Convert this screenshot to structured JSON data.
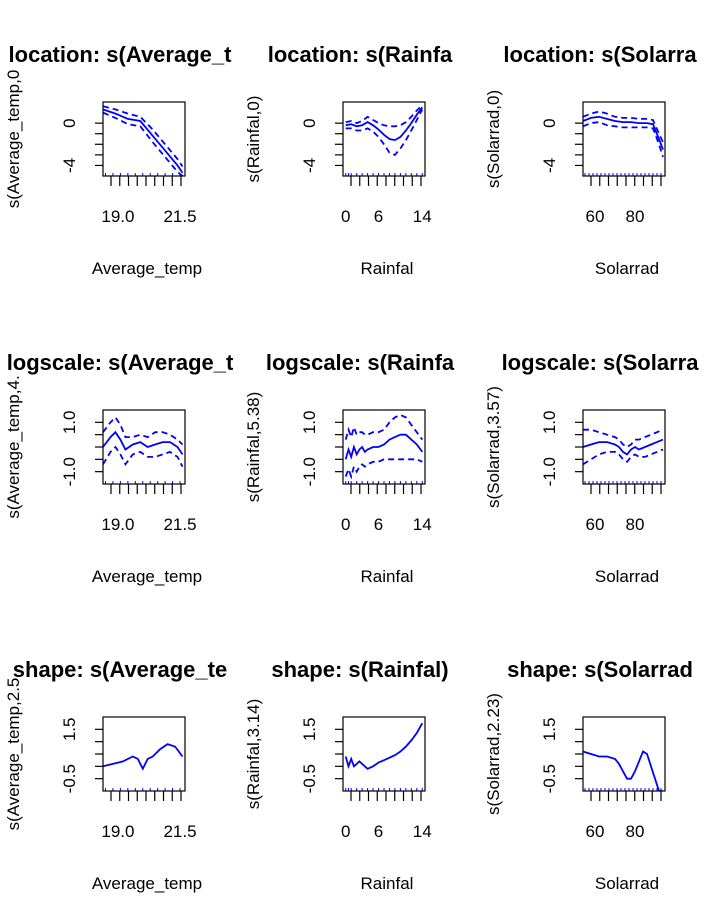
{
  "chart_data": [
    {
      "type": "line",
      "title": "location: s(Average_t",
      "xlabel": "Average_temp",
      "ylabel": "s(Average_temp,0",
      "xlim": [
        18.4,
        21.7
      ],
      "ylim": [
        -5.0,
        2.0
      ],
      "xticks": [
        19.0,
        21.5
      ],
      "xtick_labels": [
        "19.0",
        "21.5"
      ],
      "yticks": [
        -4,
        0
      ],
      "ytick_labels": [
        "-4",
        "0"
      ],
      "rug": [
        18.5,
        18.8,
        19.1,
        19.4,
        19.7,
        20.0,
        20.3,
        20.6,
        20.9,
        21.2,
        21.5
      ],
      "series": [
        {
          "x": [
            18.4,
            18.9,
            19.4,
            19.9,
            20.4,
            20.9,
            21.4,
            21.6
          ],
          "values": [
            1.3,
            0.9,
            0.4,
            0.2,
            -1.2,
            -2.6,
            -4.0,
            -4.7
          ]
        },
        {
          "style": "dashed",
          "x": [
            18.4,
            18.9,
            19.4,
            19.9,
            20.4,
            20.9,
            21.4,
            21.6
          ],
          "values": [
            1.6,
            1.3,
            0.9,
            0.6,
            -0.6,
            -2.0,
            -3.4,
            -4.1
          ]
        },
        {
          "style": "dashed",
          "x": [
            18.4,
            18.9,
            19.4,
            19.9,
            20.4,
            20.9,
            21.4,
            21.6
          ],
          "values": [
            1.0,
            0.5,
            -0.1,
            -0.3,
            -1.8,
            -3.2,
            -4.6,
            -5.0
          ]
        }
      ]
    },
    {
      "type": "line",
      "title": "location: s(Rainfa",
      "xlabel": "Rainfal",
      "ylabel": "s(Rainfal,0)",
      "xlim": [
        -0.5,
        14.5
      ],
      "ylim": [
        -5.0,
        2.0
      ],
      "xticks": [
        0,
        6,
        14
      ],
      "xtick_labels": [
        "0",
        "6",
        "14"
      ],
      "yticks": [
        -4,
        0
      ],
      "ytick_labels": [
        "-4",
        "0"
      ],
      "rug": [
        0,
        0.5,
        1,
        2,
        3,
        4,
        5,
        6,
        7,
        8,
        9,
        10,
        11,
        12,
        13,
        14
      ],
      "series": [
        {
          "x": [
            0,
            1,
            2,
            3,
            4,
            5,
            6,
            7,
            8,
            9,
            10,
            11,
            12,
            13,
            14
          ],
          "values": [
            -0.2,
            -0.1,
            -0.3,
            -0.2,
            0.1,
            -0.2,
            -0.6,
            -1.1,
            -1.5,
            -1.6,
            -1.3,
            -0.7,
            0.0,
            0.8,
            1.5
          ]
        },
        {
          "style": "dashed",
          "x": [
            0,
            1,
            2,
            3,
            4,
            5,
            6,
            7,
            8,
            9,
            10,
            11,
            12,
            13,
            14
          ],
          "values": [
            0.1,
            0.2,
            0.0,
            0.2,
            0.6,
            0.3,
            0.0,
            -0.2,
            -0.3,
            -0.3,
            -0.2,
            0.1,
            0.6,
            1.2,
            1.7
          ]
        },
        {
          "style": "dashed",
          "x": [
            0,
            1,
            2,
            3,
            4,
            5,
            6,
            7,
            8,
            9,
            10,
            11,
            12,
            13,
            14
          ],
          "values": [
            -0.5,
            -0.5,
            -0.7,
            -0.7,
            -0.5,
            -0.8,
            -1.3,
            -2.0,
            -2.8,
            -3.0,
            -2.4,
            -1.6,
            -0.7,
            0.3,
            1.3
          ]
        }
      ]
    },
    {
      "type": "line",
      "title": "location: s(Solarra",
      "xlabel": "Solarrad",
      "ylabel": "s(Solarrad,0)",
      "xlim": [
        54,
        95
      ],
      "ylim": [
        -5.0,
        2.0
      ],
      "xticks": [
        60,
        80
      ],
      "xtick_labels": [
        "60",
        "80"
      ],
      "rug": [
        55,
        57,
        59,
        61,
        63,
        65,
        67,
        69,
        71,
        73,
        75,
        77,
        79,
        81,
        83,
        85,
        87,
        89,
        91,
        93
      ],
      "yticks": [
        -4,
        0
      ],
      "ytick_labels": [
        "-4",
        "0"
      ],
      "series": [
        {
          "x": [
            54,
            58,
            62,
            66,
            70,
            74,
            78,
            82,
            86,
            89,
            92,
            94
          ],
          "values": [
            0.2,
            0.5,
            0.6,
            0.4,
            0.2,
            0.1,
            0.1,
            0.0,
            0.0,
            -0.1,
            -1.5,
            -2.5
          ]
        },
        {
          "style": "dashed",
          "x": [
            54,
            58,
            62,
            66,
            70,
            74,
            78,
            82,
            86,
            89,
            92,
            94
          ],
          "values": [
            0.6,
            0.9,
            1.1,
            0.9,
            0.6,
            0.5,
            0.5,
            0.4,
            0.4,
            0.3,
            -1.0,
            -1.8
          ]
        },
        {
          "style": "dashed",
          "x": [
            54,
            58,
            62,
            66,
            70,
            74,
            78,
            82,
            86,
            89,
            92,
            94
          ],
          "values": [
            -0.3,
            0.0,
            0.1,
            -0.2,
            -0.3,
            -0.4,
            -0.4,
            -0.4,
            -0.4,
            -0.5,
            -2.0,
            -3.2
          ]
        }
      ]
    },
    {
      "type": "line",
      "title": "logscale: s(Average_t",
      "xlabel": "Average_temp",
      "ylabel": "s(Average_temp,4.",
      "xlim": [
        18.4,
        21.7
      ],
      "ylim": [
        -1.5,
        1.5
      ],
      "xticks": [
        19.0,
        21.5
      ],
      "xtick_labels": [
        "19.0",
        "21.5"
      ],
      "yticks": [
        -1.0,
        1.0
      ],
      "ytick_labels": [
        "-1.0",
        "1.0"
      ],
      "rug": [
        18.5,
        18.8,
        19.1,
        19.4,
        19.7,
        20.0,
        20.3,
        20.6,
        20.9,
        21.2,
        21.5
      ],
      "series": [
        {
          "x": [
            18.4,
            18.7,
            18.9,
            19.1,
            19.3,
            19.6,
            19.9,
            20.2,
            20.5,
            20.8,
            21.1,
            21.4,
            21.6
          ],
          "values": [
            0.0,
            0.4,
            0.6,
            0.3,
            -0.1,
            0.1,
            0.2,
            0.0,
            0.1,
            0.2,
            0.2,
            0.0,
            -0.3
          ]
        },
        {
          "style": "dashed",
          "x": [
            18.4,
            18.7,
            18.9,
            19.1,
            19.3,
            19.6,
            19.9,
            20.2,
            20.5,
            20.8,
            21.1,
            21.4,
            21.6
          ],
          "values": [
            0.6,
            1.0,
            1.2,
            0.9,
            0.4,
            0.4,
            0.5,
            0.4,
            0.6,
            0.6,
            0.5,
            0.3,
            0.1
          ]
        },
        {
          "style": "dashed",
          "x": [
            18.4,
            18.7,
            18.9,
            19.1,
            19.3,
            19.6,
            19.9,
            20.2,
            20.5,
            20.8,
            21.1,
            21.4,
            21.6
          ],
          "values": [
            -0.7,
            -0.2,
            0.0,
            -0.3,
            -0.7,
            -0.3,
            -0.2,
            -0.4,
            -0.4,
            -0.3,
            -0.2,
            -0.4,
            -0.8
          ]
        }
      ]
    },
    {
      "type": "line",
      "title": "logscale: s(Rainfa",
      "xlabel": "Rainfal",
      "ylabel": "s(Rainfal,5.38)",
      "xlim": [
        -0.5,
        14.5
      ],
      "ylim": [
        -1.5,
        1.5
      ],
      "xticks": [
        0,
        6,
        14
      ],
      "xtick_labels": [
        "0",
        "6",
        "14"
      ],
      "yticks": [
        -1.0,
        1.0
      ],
      "ytick_labels": [
        "-1.0",
        "1.0"
      ],
      "rug": [
        0,
        0.5,
        1,
        2,
        3,
        4,
        5,
        6,
        7,
        8,
        9,
        10,
        11,
        12,
        13,
        14
      ],
      "series": [
        {
          "x": [
            0,
            0.5,
            1,
            1.5,
            2,
            2.5,
            3,
            3.5,
            4,
            5,
            6,
            7,
            8,
            9,
            10,
            11,
            12,
            13,
            14
          ],
          "values": [
            -0.5,
            -0.1,
            -0.4,
            0.0,
            -0.3,
            -0.1,
            0.0,
            -0.2,
            -0.1,
            0.0,
            0.0,
            0.1,
            0.3,
            0.4,
            0.5,
            0.5,
            0.3,
            0.1,
            -0.2
          ]
        },
        {
          "style": "dashed",
          "x": [
            0,
            0.5,
            1,
            1.5,
            2,
            2.5,
            3,
            3.5,
            4,
            5,
            6,
            7,
            8,
            9,
            10,
            11,
            12,
            13,
            14
          ],
          "values": [
            0.3,
            0.7,
            0.4,
            0.8,
            0.5,
            0.6,
            0.6,
            0.5,
            0.5,
            0.6,
            0.6,
            0.7,
            1.0,
            1.2,
            1.3,
            1.2,
            0.9,
            0.6,
            0.3
          ]
        },
        {
          "style": "dashed",
          "x": [
            0,
            0.5,
            1,
            1.5,
            2,
            2.5,
            3,
            3.5,
            4,
            5,
            6,
            7,
            8,
            9,
            10,
            11,
            12,
            13,
            14
          ],
          "values": [
            -1.2,
            -0.9,
            -1.2,
            -0.8,
            -1.0,
            -0.8,
            -0.7,
            -0.8,
            -0.7,
            -0.6,
            -0.6,
            -0.5,
            -0.5,
            -0.5,
            -0.5,
            -0.5,
            -0.5,
            -0.5,
            -0.6
          ]
        }
      ]
    },
    {
      "type": "line",
      "title": "logscale: s(Solarra",
      "xlabel": "Solarrad",
      "ylabel": "s(Solarrad,3.57)",
      "xlim": [
        54,
        95
      ],
      "ylim": [
        -1.5,
        1.5
      ],
      "xticks": [
        60,
        80
      ],
      "xtick_labels": [
        "60",
        "80"
      ],
      "yticks": [
        -1.0,
        1.0
      ],
      "ytick_labels": [
        "-1.0",
        "1.0"
      ],
      "rug": [
        55,
        57,
        59,
        61,
        63,
        65,
        67,
        69,
        71,
        73,
        75,
        77,
        79,
        81,
        83,
        85,
        87,
        89,
        91,
        93
      ],
      "series": [
        {
          "x": [
            54,
            58,
            62,
            66,
            70,
            72,
            74,
            76,
            78,
            80,
            82,
            85,
            88,
            91,
            94
          ],
          "values": [
            0.0,
            0.1,
            0.2,
            0.2,
            0.1,
            0.0,
            -0.2,
            -0.3,
            -0.1,
            0.0,
            -0.1,
            0.0,
            0.1,
            0.2,
            0.3
          ]
        },
        {
          "style": "dashed",
          "x": [
            54,
            58,
            62,
            66,
            70,
            72,
            74,
            76,
            78,
            80,
            82,
            85,
            88,
            91,
            94
          ],
          "values": [
            0.7,
            0.7,
            0.6,
            0.5,
            0.4,
            0.3,
            0.1,
            0.0,
            0.1,
            0.3,
            0.3,
            0.4,
            0.5,
            0.6,
            0.7
          ]
        },
        {
          "style": "dashed",
          "x": [
            54,
            58,
            62,
            66,
            70,
            72,
            74,
            76,
            78,
            80,
            82,
            85,
            88,
            91,
            94
          ],
          "values": [
            -0.7,
            -0.5,
            -0.3,
            -0.2,
            -0.2,
            -0.3,
            -0.5,
            -0.6,
            -0.4,
            -0.3,
            -0.4,
            -0.4,
            -0.3,
            -0.2,
            -0.1
          ]
        }
      ]
    },
    {
      "type": "line",
      "title": "shape: s(Average_te",
      "xlabel": "Average_temp",
      "ylabel": "s(Average_temp,2.5",
      "xlim": [
        18.4,
        21.7
      ],
      "ylim": [
        -1.0,
        2.0
      ],
      "xticks": [
        19.0,
        21.5
      ],
      "xtick_labels": [
        "19.0",
        "21.5"
      ],
      "yticks": [
        -0.5,
        1.5
      ],
      "ytick_labels": [
        "-0.5",
        "1.5"
      ],
      "rug": [
        18.5,
        18.8,
        19.1,
        19.4,
        19.7,
        20.0,
        20.3,
        20.6,
        20.9,
        21.2,
        21.5
      ],
      "series": [
        {
          "x": [
            18.4,
            18.8,
            19.2,
            19.6,
            19.8,
            20.0,
            20.2,
            20.4,
            20.7,
            21.0,
            21.3,
            21.6
          ],
          "values": [
            0.0,
            0.1,
            0.2,
            0.4,
            0.3,
            -0.1,
            0.3,
            0.4,
            0.7,
            0.9,
            0.8,
            0.4
          ]
        }
      ]
    },
    {
      "type": "line",
      "title": "shape: s(Rainfal)",
      "xlabel": "Rainfal",
      "ylabel": "s(Rainfal,3.14)",
      "xlim": [
        -0.5,
        14.5
      ],
      "ylim": [
        -1.0,
        2.0
      ],
      "xticks": [
        0,
        6,
        14
      ],
      "xtick_labels": [
        "0",
        "6",
        "14"
      ],
      "yticks": [
        -0.5,
        1.5
      ],
      "ytick_labels": [
        "-0.5",
        "1.5"
      ],
      "rug": [
        0,
        0.5,
        1,
        2,
        3,
        4,
        5,
        6,
        7,
        8,
        9,
        10,
        11,
        12,
        13,
        14
      ],
      "series": [
        {
          "x": [
            0,
            0.5,
            1,
            1.5,
            2,
            2.5,
            3,
            4,
            5,
            6,
            7,
            8,
            9,
            10,
            11,
            12,
            13,
            14
          ],
          "values": [
            0.4,
            0.0,
            0.3,
            0.0,
            0.1,
            0.2,
            0.1,
            -0.1,
            0.0,
            0.15,
            0.25,
            0.35,
            0.45,
            0.6,
            0.8,
            1.05,
            1.35,
            1.75
          ]
        }
      ]
    },
    {
      "type": "line",
      "title": "shape: s(Solarrad",
      "xlabel": "Solarrad",
      "ylabel": "s(Solarrad,2.23)",
      "xlim": [
        54,
        95
      ],
      "ylim": [
        -1.0,
        2.0
      ],
      "xticks": [
        60,
        80
      ],
      "xtick_labels": [
        "60",
        "80"
      ],
      "yticks": [
        -0.5,
        1.5
      ],
      "ytick_labels": [
        "-0.5",
        "1.5"
      ],
      "rug": [
        55,
        57,
        59,
        61,
        63,
        65,
        67,
        69,
        71,
        73,
        75,
        77,
        79,
        81,
        83,
        85,
        87,
        89,
        91,
        93
      ],
      "series": [
        {
          "x": [
            54,
            58,
            62,
            66,
            70,
            72,
            74,
            76,
            78,
            80,
            82,
            84,
            86,
            88,
            90,
            92,
            94
          ],
          "values": [
            0.6,
            0.5,
            0.4,
            0.4,
            0.3,
            0.1,
            -0.2,
            -0.5,
            -0.5,
            -0.2,
            0.2,
            0.6,
            0.5,
            0.0,
            -0.5,
            -1.0,
            -1.0
          ]
        }
      ]
    }
  ],
  "colors": {
    "line": "#0000ff",
    "rug": "#0000ff",
    "axis": "#000000"
  }
}
